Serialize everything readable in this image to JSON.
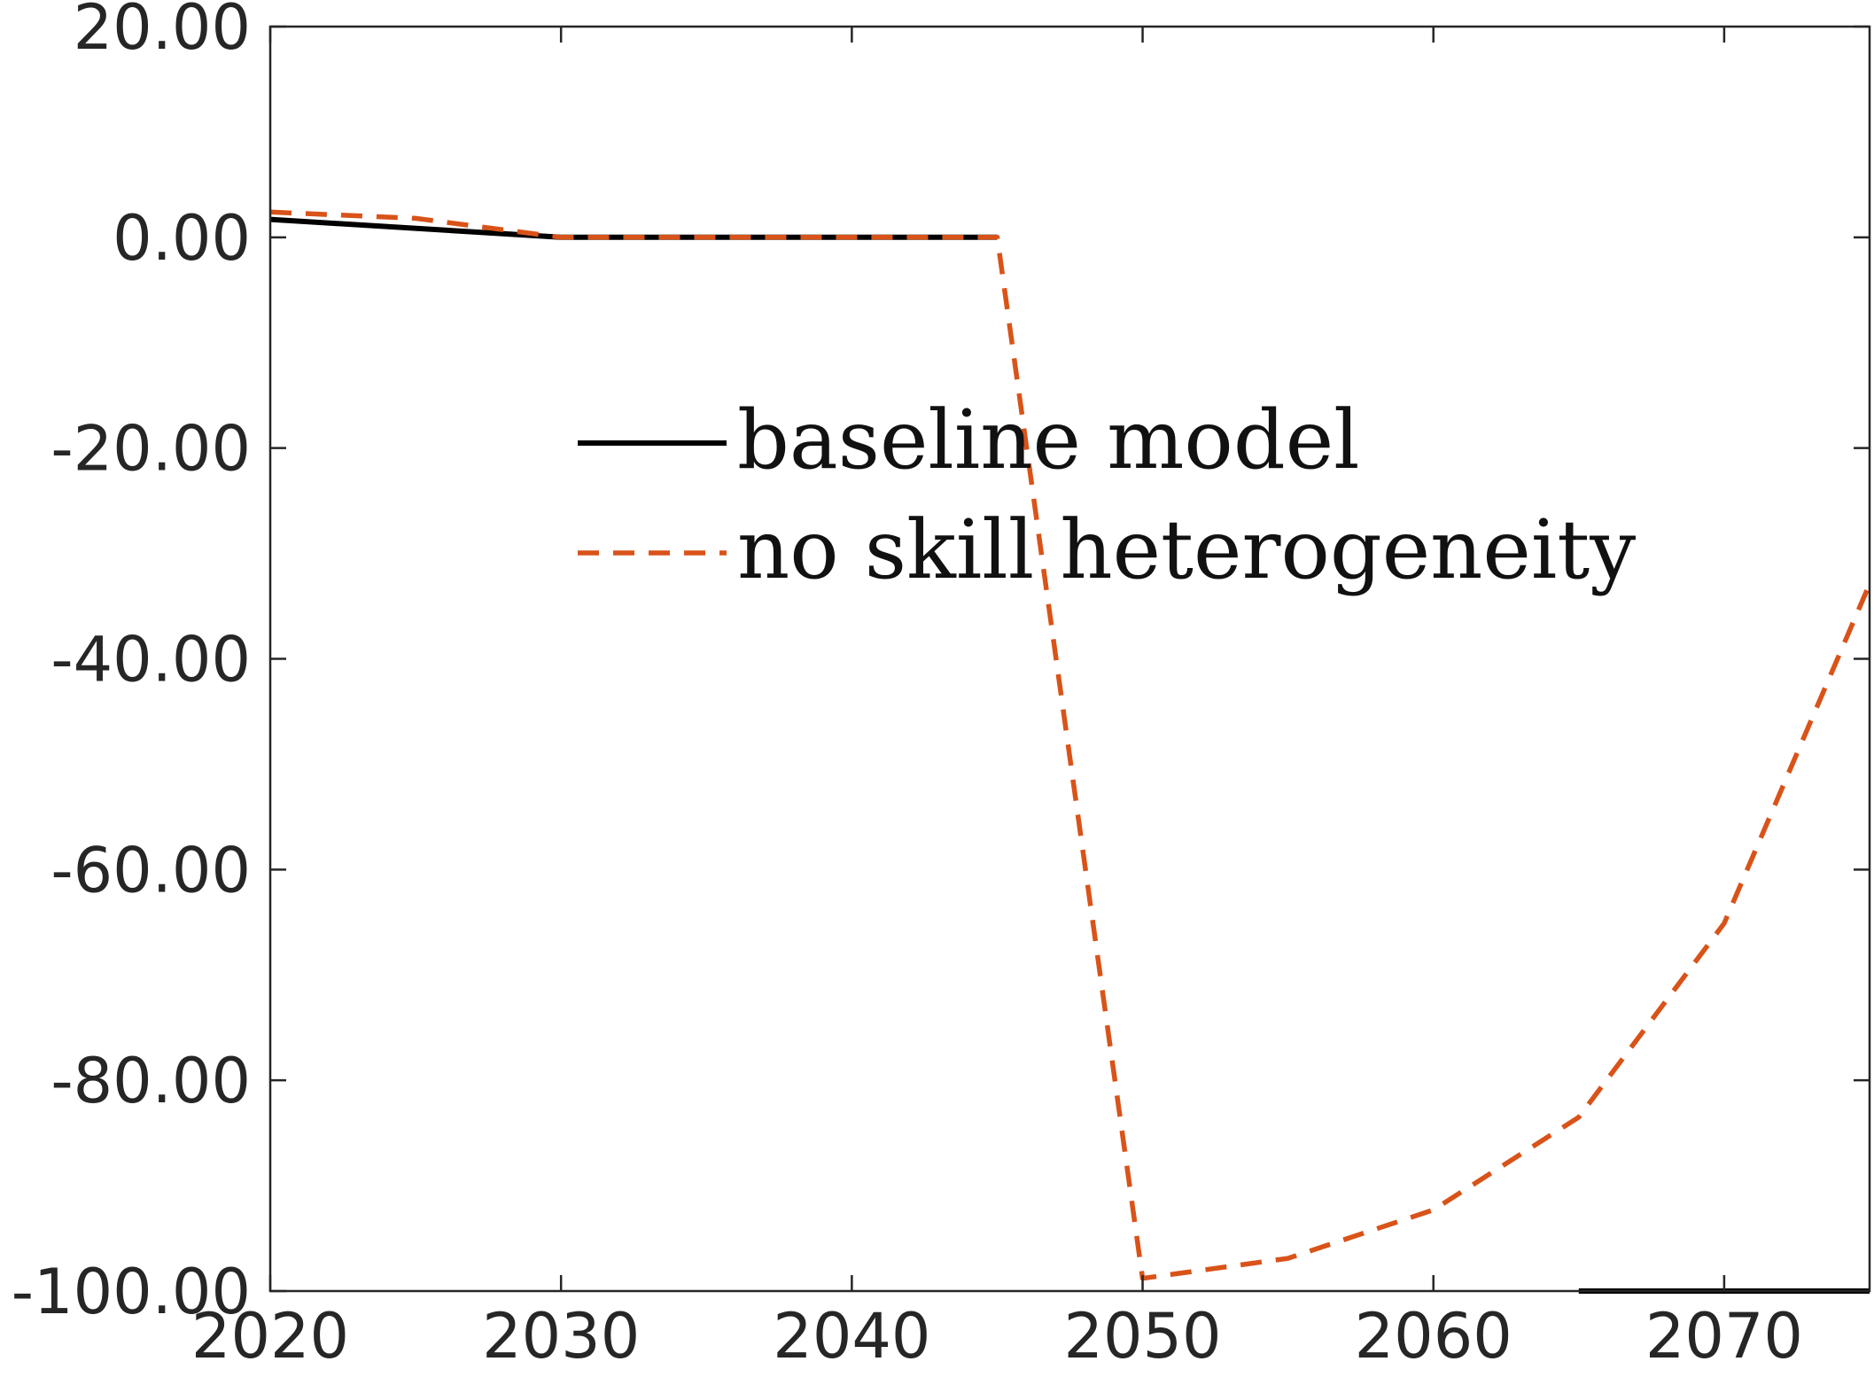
{
  "chart_data": {
    "type": "line",
    "title": "",
    "xlabel": "",
    "ylabel": "",
    "xlim": [
      2020,
      2075
    ],
    "ylim": [
      -100,
      20
    ],
    "x_ticks": [
      2020,
      2030,
      2040,
      2050,
      2060,
      2070
    ],
    "x_tick_labels": [
      "2020",
      "2030",
      "2040",
      "2050",
      "2060",
      "2070"
    ],
    "y_ticks": [
      20,
      0,
      -20,
      -40,
      -60,
      -80,
      -100
    ],
    "y_tick_labels": [
      "20.00",
      "0.00",
      "-20.00",
      "-40.00",
      "-60.00",
      "-80.00",
      "-100.00"
    ],
    "grid": false,
    "legend_position": "upper-center",
    "series": [
      {
        "name": "baseline model",
        "style": "solid",
        "color": "#000000",
        "x": [
          2020,
          2030,
          2045
        ],
        "y": [
          1.7,
          0,
          0
        ]
      },
      {
        "name": "no skill heterogeneity",
        "style": "dashed",
        "color": "#D95319",
        "x": [
          2020,
          2025,
          2030,
          2035,
          2040,
          2045,
          2050,
          2055,
          2060,
          2065,
          2070,
          2075
        ],
        "y": [
          2.4,
          1.8,
          0,
          0,
          0,
          0,
          -98.8,
          -96.9,
          -92.3,
          -83.5,
          -65.1,
          -32.9
        ]
      },
      {
        "name": "",
        "style": "solid",
        "color": "#000000",
        "x": [
          2065,
          2075
        ],
        "y": [
          -100,
          -100
        ]
      }
    ]
  }
}
